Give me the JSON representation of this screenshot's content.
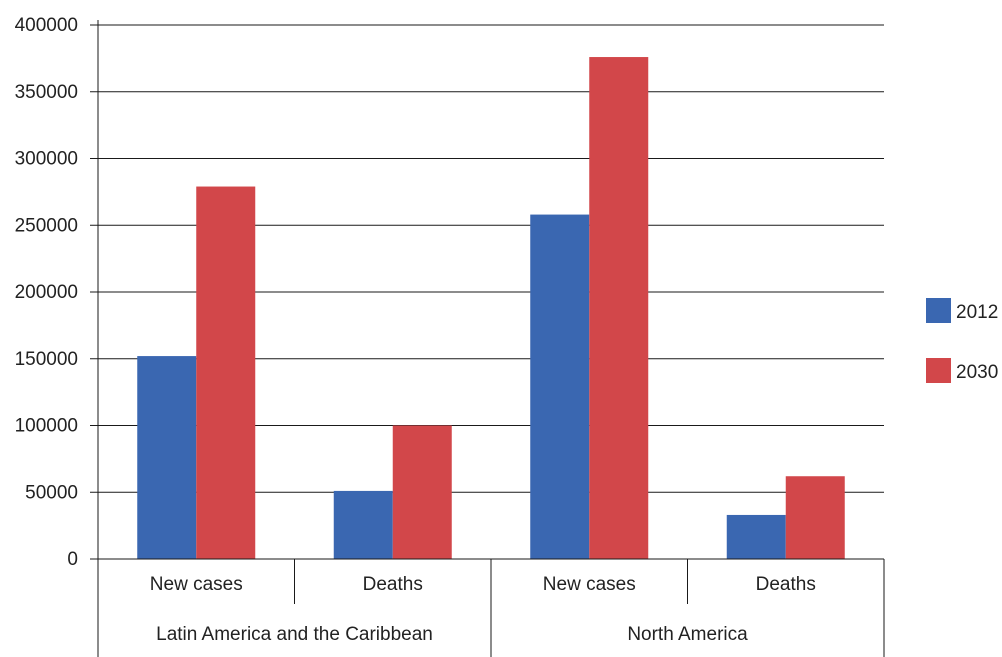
{
  "chart_data": {
    "type": "bar",
    "title": "",
    "xlabel": "",
    "ylabel": "",
    "ylim": [
      0,
      400000
    ],
    "yticks": [
      0,
      50000,
      100000,
      150000,
      200000,
      250000,
      300000,
      350000,
      400000
    ],
    "grid": true,
    "legend_position": "right",
    "groups": [
      "Latin America and the Caribbean",
      "North America"
    ],
    "categories": [
      "New cases",
      "Deaths",
      "New cases",
      "Deaths"
    ],
    "category_group": [
      0,
      0,
      1,
      1
    ],
    "series": [
      {
        "name": "2012",
        "color": "#3a67b1",
        "values": [
          152000,
          51000,
          258000,
          33000
        ]
      },
      {
        "name": "2030",
        "color": "#d2474a",
        "values": [
          279000,
          100000,
          376000,
          62000
        ]
      }
    ]
  }
}
